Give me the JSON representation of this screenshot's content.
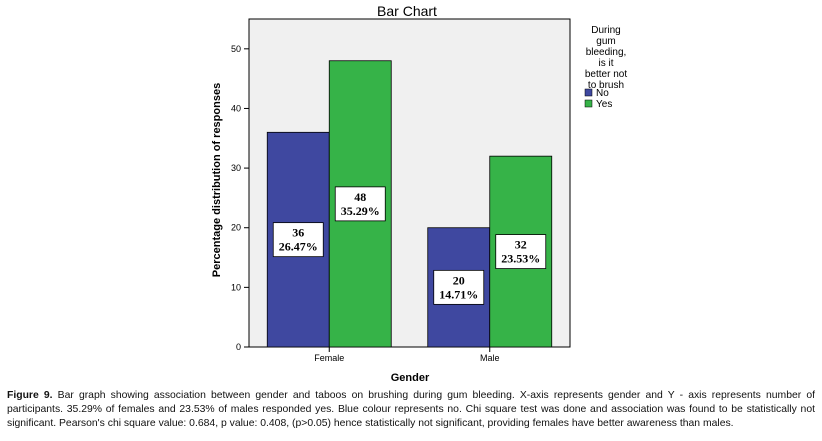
{
  "chart_data": {
    "type": "bar",
    "title": "Bar Chart",
    "xlabel": "Gender",
    "ylabel": "Percentage distribution of responses",
    "categories": [
      "Female",
      "Male"
    ],
    "ylim": [
      0,
      55
    ],
    "yticks": [
      0,
      10,
      20,
      30,
      40,
      50
    ],
    "legend_title": "During gum bleeding, is it better not to brush",
    "legend_title_lines": [
      "During",
      "gum",
      "bleeding,",
      "is it",
      "better not",
      "to brush"
    ],
    "legend_position": "right",
    "series": [
      {
        "name": "No",
        "color": "#3f48a0",
        "values": [
          36,
          20
        ],
        "percent_labels": [
          "26.47%",
          "14.71%"
        ]
      },
      {
        "name": "Yes",
        "color": "#36b348",
        "values": [
          48,
          32
        ],
        "percent_labels": [
          "35.29%",
          "23.53%"
        ]
      }
    ]
  },
  "caption": {
    "label": "Figure 9.",
    "text": "Bar graph showing association between gender and taboos on brushing during gum bleeding. X-axis represents gender and Y - axis represents number of participants. 35.29% of females and 23.53% of males responded yes. Blue colour represents no. Chi square test was done and association was found to be statistically not significant. Pearson's chi square value: 0.684, p value: 0.408, (p>0.05) hence statistically not significant, providing females have better awareness than males."
  }
}
